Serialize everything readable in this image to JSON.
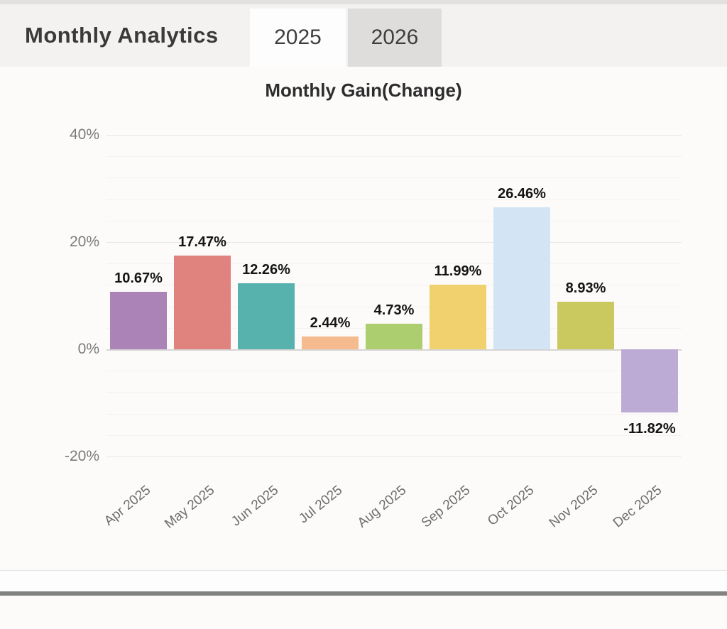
{
  "header": {
    "title": "Monthly Analytics",
    "tabs": [
      {
        "label": "2025",
        "active": true
      },
      {
        "label": "2026",
        "active": false
      }
    ]
  },
  "chart_data": {
    "type": "bar",
    "title": "Monthly Gain(Change)",
    "categories": [
      "Apr 2025",
      "May 2025",
      "Jun 2025",
      "Jul 2025",
      "Aug 2025",
      "Sep 2025",
      "Oct 2025",
      "Nov 2025",
      "Dec 2025"
    ],
    "values": [
      10.67,
      17.47,
      12.26,
      2.44,
      4.73,
      11.99,
      26.46,
      8.93,
      -11.82
    ],
    "value_labels": [
      "10.67%",
      "17.47%",
      "12.26%",
      "2.44%",
      "4.73%",
      "11.99%",
      "26.46%",
      "8.93%",
      "-11.82%"
    ],
    "bar_colors": [
      "#ab83b6",
      "#e0827d",
      "#57b1ad",
      "#f5ba8d",
      "#adce6e",
      "#f1d06e",
      "#d3e5f5",
      "#c9c960",
      "#bcabd5"
    ],
    "xlabel": "",
    "ylabel": "",
    "ylim": [
      -24,
      44
    ],
    "yticks": [
      {
        "value": 40,
        "label": "40%"
      },
      {
        "value": 20,
        "label": "20%"
      },
      {
        "value": 0,
        "label": "0%"
      },
      {
        "value": -20,
        "label": "-20%"
      }
    ],
    "grid": "on",
    "legend": "none"
  }
}
